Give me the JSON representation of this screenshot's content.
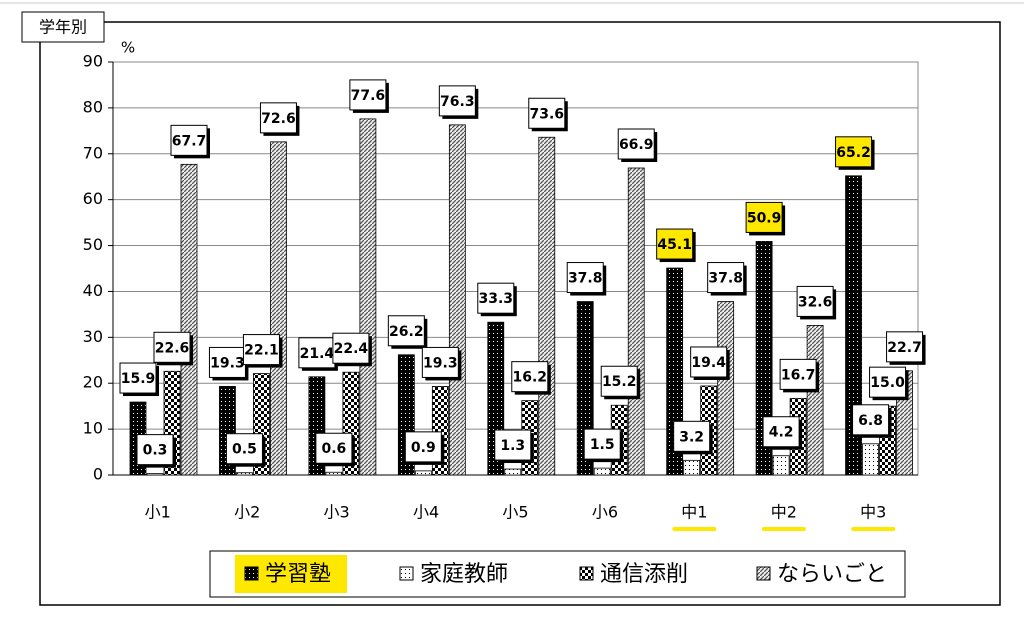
{
  "chart_data": {
    "type": "bar",
    "title": "学年別",
    "y_unit": "%",
    "categories": [
      "小1",
      "小2",
      "小3",
      "小4",
      "小5",
      "小6",
      "中1",
      "中2",
      "中3"
    ],
    "series": [
      {
        "name": "学習塾",
        "color": "#000000",
        "pattern": "dots",
        "values": [
          15.9,
          19.3,
          21.4,
          26.2,
          33.3,
          37.8,
          45.1,
          50.9,
          65.2
        ],
        "value_labels": [
          "15.9",
          "19.3",
          "21.4",
          "26.2",
          "33.3",
          "37.8",
          "45.1",
          "50.9",
          "65.2"
        ]
      },
      {
        "name": "家庭教師",
        "color": "#ffffff",
        "pattern": "dots",
        "values": [
          0.3,
          0.5,
          0.6,
          0.9,
          1.3,
          1.5,
          3.2,
          4.2,
          6.8
        ],
        "value_labels": [
          "0.3",
          "0.5",
          "0.6",
          "0.9",
          "1.3",
          "1.5",
          "3.2",
          "4.2",
          "6.8"
        ]
      },
      {
        "name": "通信添削",
        "color": "#000000",
        "pattern": "checker",
        "values": [
          22.6,
          22.1,
          22.4,
          19.3,
          16.2,
          15.2,
          19.4,
          16.7,
          15.0
        ],
        "value_labels": [
          "22.6",
          "22.1",
          "22.4",
          "19.3",
          "16.2",
          "15.2",
          "19.4",
          "16.7",
          "15.0"
        ]
      },
      {
        "name": "ならいごと",
        "color": "#555555",
        "pattern": "hatch",
        "values": [
          67.7,
          72.6,
          77.6,
          76.3,
          73.6,
          66.9,
          37.8,
          32.6,
          22.7
        ],
        "value_labels": [
          "67.7",
          "72.6",
          "77.6",
          "76.3",
          "73.6",
          "66.9",
          "37.8",
          "32.6",
          "22.7"
        ]
      }
    ],
    "ylim": [
      0,
      90
    ],
    "yticks": [
      0,
      10,
      20,
      30,
      40,
      50,
      60,
      70,
      80,
      90
    ],
    "grid": true,
    "highlight": {
      "color": "#ffe800",
      "series": 0,
      "categories": [
        6,
        7,
        8
      ]
    }
  }
}
